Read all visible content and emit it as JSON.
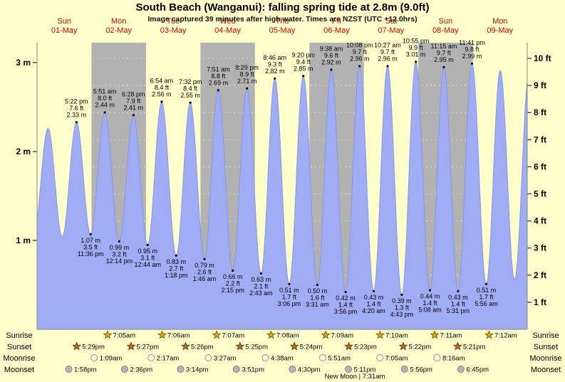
{
  "chart_data": {
    "type": "area",
    "title": "South Beach (Wanganui): falling  spring tide at 2.8m (9.0ft)",
    "subtitle": "Image captured 39 minutes after high water. Times are NZST (UTC +12.0hrs)",
    "x_axis": {
      "days": [
        {
          "name": "Sun",
          "date": "01-May"
        },
        {
          "name": "Mon",
          "date": "02-May"
        },
        {
          "name": "Tue",
          "date": "03-May"
        },
        {
          "name": "Wed",
          "date": "04-May"
        },
        {
          "name": "Thu",
          "date": "05-May"
        },
        {
          "name": "Fri",
          "date": "06-May"
        },
        {
          "name": "Sat",
          "date": "07-May"
        },
        {
          "name": "Sun",
          "date": "08-May"
        },
        {
          "name": "Mon",
          "date": "09-May"
        }
      ]
    },
    "y_axis": {
      "left_unit": "m",
      "left_ticks": [
        1,
        2,
        3
      ],
      "right_unit": "ft",
      "right_ticks": [
        1,
        2,
        3,
        4,
        5,
        6,
        7,
        8,
        9,
        10
      ],
      "range_m": [
        0,
        3.22
      ]
    },
    "tide_events": [
      {
        "day": 0,
        "time": "5:22 pm",
        "height_m": 2.33,
        "height_ft": 7.6,
        "type": "high"
      },
      {
        "day": 0,
        "time": "11:36 pm",
        "height_m": 1.07,
        "height_ft": 3.5,
        "type": "low"
      },
      {
        "day": 1,
        "time": "5:51 am",
        "height_m": 2.44,
        "height_ft": 8.0,
        "type": "high"
      },
      {
        "day": 1,
        "time": "12:14 pm",
        "height_m": 0.99,
        "height_ft": 3.2,
        "type": "low"
      },
      {
        "day": 1,
        "time": "6:28 pm",
        "height_m": 2.41,
        "height_ft": 7.9,
        "type": "high"
      },
      {
        "day": 2,
        "time": "12:44 am",
        "height_m": 0.95,
        "height_ft": 3.1,
        "type": "low"
      },
      {
        "day": 2,
        "time": "6:54 am",
        "height_m": 2.56,
        "height_ft": 8.4,
        "type": "high"
      },
      {
        "day": 2,
        "time": "1:18 pm",
        "height_m": 0.83,
        "height_ft": 2.7,
        "type": "low"
      },
      {
        "day": 2,
        "time": "7:32 pm",
        "height_m": 2.55,
        "height_ft": 8.4,
        "type": "high"
      },
      {
        "day": 3,
        "time": "1:46 am",
        "height_m": 0.79,
        "height_ft": 2.6,
        "type": "low"
      },
      {
        "day": 3,
        "time": "7:51 am",
        "height_m": 2.69,
        "height_ft": 8.8,
        "type": "high"
      },
      {
        "day": 3,
        "time": "2:15 pm",
        "height_m": 0.66,
        "height_ft": 2.2,
        "type": "low"
      },
      {
        "day": 3,
        "time": "8:29 pm",
        "height_m": 2.71,
        "height_ft": 8.9,
        "type": "high"
      },
      {
        "day": 4,
        "time": "2:43 am",
        "height_m": 0.63,
        "height_ft": 2.1,
        "type": "low"
      },
      {
        "day": 4,
        "time": "8:46 am",
        "height_m": 2.82,
        "height_ft": 9.3,
        "type": "high"
      },
      {
        "day": 4,
        "time": "3:06 pm",
        "height_m": 0.51,
        "height_ft": 1.7,
        "type": "low"
      },
      {
        "day": 4,
        "time": "9:20 pm",
        "height_m": 2.85,
        "height_ft": 9.4,
        "type": "high"
      },
      {
        "day": 5,
        "time": "3:31 am",
        "height_m": 0.5,
        "height_ft": 1.6,
        "type": "low"
      },
      {
        "day": 5,
        "time": "9:38 am",
        "height_m": 2.92,
        "height_ft": 9.6,
        "type": "high"
      },
      {
        "day": 5,
        "time": "3:56 pm",
        "height_m": 0.42,
        "height_ft": 1.4,
        "type": "low"
      },
      {
        "day": 5,
        "time": "10:08 pm",
        "height_m": 2.96,
        "height_ft": 9.7,
        "type": "high"
      },
      {
        "day": 6,
        "time": "4:20 am",
        "height_m": 0.43,
        "height_ft": 1.4,
        "type": "low"
      },
      {
        "day": 6,
        "time": "10:27 am",
        "height_m": 2.96,
        "height_ft": 9.7,
        "type": "high"
      },
      {
        "day": 6,
        "time": "4:43 pm",
        "height_m": 0.39,
        "height_ft": 1.3,
        "type": "low"
      },
      {
        "day": 6,
        "time": "10:55 pm",
        "height_m": 3.01,
        "height_ft": 9.9,
        "type": "high"
      },
      {
        "day": 7,
        "time": "5:08 am",
        "height_m": 0.44,
        "height_ft": 1.4,
        "type": "low"
      },
      {
        "day": 7,
        "time": "11:15 am",
        "height_m": 2.95,
        "height_ft": 9.7,
        "type": "high"
      },
      {
        "day": 7,
        "time": "5:31 pm",
        "height_m": 0.43,
        "height_ft": 1.4,
        "type": "low"
      },
      {
        "day": 7,
        "time": "11:41 pm",
        "height_m": 2.99,
        "height_ft": 9.8,
        "type": "high"
      },
      {
        "day": 8,
        "time": "5:56 am",
        "height_m": 0.51,
        "height_ft": 1.7,
        "type": "low"
      }
    ],
    "edge_events": [
      {
        "day_t": -0.06,
        "height_m": 1.08
      },
      {
        "day_t": 0.201,
        "height_m": 2.26
      },
      {
        "day_t": 0.462,
        "height_m": 1.04
      },
      {
        "day_t": 8.504,
        "height_m": 2.91
      },
      {
        "day_t": 8.766,
        "height_m": 0.56
      },
      {
        "day_t": 9.04,
        "height_m": 2.93
      }
    ],
    "astro_rows": [
      {
        "id": "sunrise",
        "label": "Sunrise",
        "icon": "star-sunrise",
        "start_day": 1,
        "times": [
          "7:05am",
          "7:06am",
          "7:07am",
          "7:08am",
          "7:09am",
          "7:10am",
          "7:11am",
          "7:12am"
        ]
      },
      {
        "id": "sunset",
        "label": "Sunset",
        "icon": "star-sunset",
        "start_day": 0,
        "times": [
          "5:29pm",
          "5:27pm",
          "5:26pm",
          "5:25pm",
          "5:24pm",
          "5:23pm",
          "5:22pm",
          "5:21pm"
        ]
      },
      {
        "id": "moonrise",
        "label": "Moonrise",
        "icon": "moon-light",
        "start_day": 1,
        "times": [
          "1:09am",
          "2:17am",
          "3:27am",
          "4:38am",
          "5:51am",
          "7:05am",
          "8:16am"
        ]
      },
      {
        "id": "moonset",
        "label": "Moonset",
        "icon": "moon-dark",
        "start_day": 0,
        "times": [
          "1:58pm",
          "2:36pm",
          "3:14pm",
          "3:51pm",
          "4:30pm",
          "5:11pm",
          "5:56pm",
          "6:45pm"
        ]
      }
    ],
    "moon_phase": "New Moon | 7:31am",
    "colors": {
      "background": "#ffffcc",
      "night_band": "#b2b2b2",
      "tide_fill": "#a0acf4",
      "tide_edge": "#8a96e8",
      "day_label": "#dd0000",
      "text": "#000000",
      "sunrise_star_fill": "#e2a918",
      "sunrise_star_stroke": "#806000",
      "sunset_star_fill": "#b97325",
      "sunset_star_stroke": "#6b3c10",
      "moon_light_fill": "#ffffe6",
      "moon_light_stroke": "#909090",
      "moon_dark_fill": "#b5b5b5",
      "moon_dark_stroke": "#808080"
    }
  }
}
